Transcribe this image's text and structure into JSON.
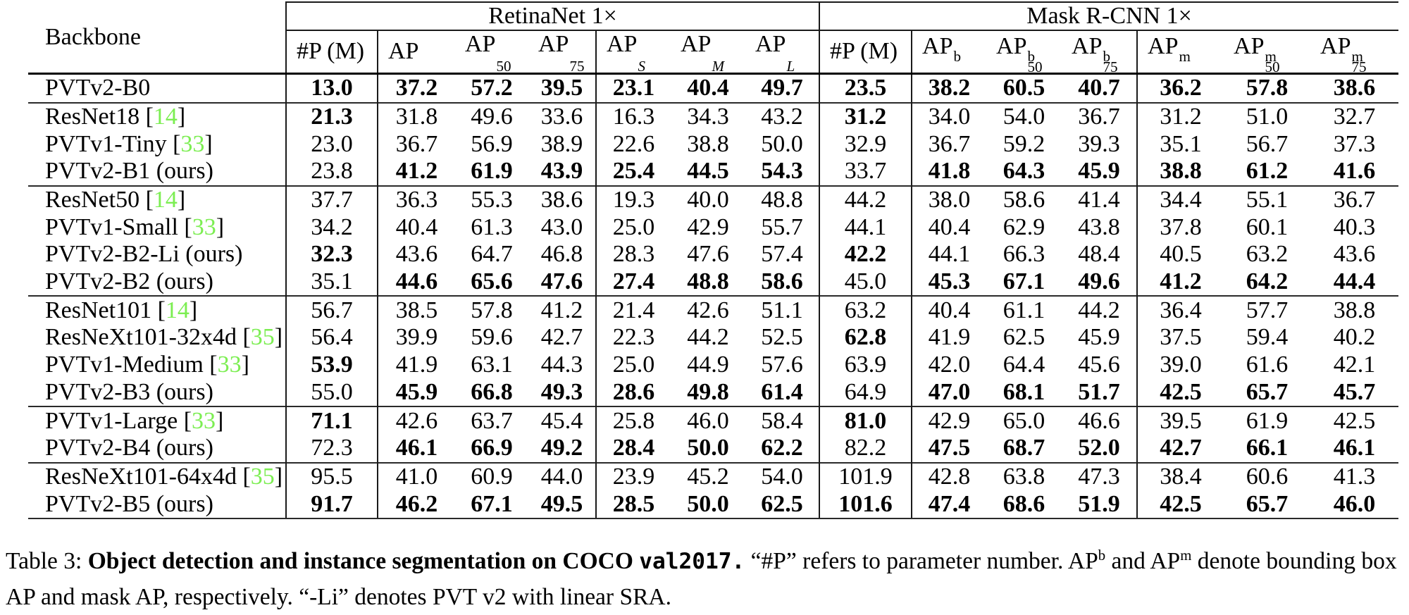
{
  "header": {
    "backbone_label": "Backbone",
    "retinanet_label": "RetinaNet 1×",
    "mask_label": "Mask R-CNN 1×",
    "subcols": [
      {
        "t": "#P (M)"
      },
      {
        "t": "AP"
      },
      {
        "t": "AP",
        "sub": "50"
      },
      {
        "t": "AP",
        "sub": "75"
      },
      {
        "t": "AP",
        "sub": "S",
        "it": 1
      },
      {
        "t": "AP",
        "sub": "M",
        "it": 1
      },
      {
        "t": "AP",
        "sub": "L",
        "it": 1
      },
      {
        "t": "#P (M)"
      },
      {
        "t": "AP",
        "sup": "b"
      },
      {
        "t": "AP",
        "sup": "b",
        "sub": "50"
      },
      {
        "t": "AP",
        "sup": "b",
        "sub": "75"
      },
      {
        "t": "AP",
        "sup": "m"
      },
      {
        "t": "AP",
        "sup": "m",
        "sub": "50"
      },
      {
        "t": "AP",
        "sup": "m",
        "sub": "75"
      }
    ]
  },
  "rows": [
    {
      "name": "PVTv2-B0",
      "cite": null,
      "sep": false,
      "v": [
        "13.0",
        "37.2",
        "57.2",
        "39.5",
        "23.1",
        "40.4",
        "49.7",
        "23.5",
        "38.2",
        "60.5",
        "40.7",
        "36.2",
        "57.8",
        "38.6"
      ],
      "b": [
        1,
        1,
        1,
        1,
        1,
        1,
        1,
        1,
        1,
        1,
        1,
        1,
        1,
        1
      ]
    },
    {
      "name": "ResNet18",
      "cite": "14",
      "sep": true,
      "v": [
        "21.3",
        "31.8",
        "49.6",
        "33.6",
        "16.3",
        "34.3",
        "43.2",
        "31.2",
        "34.0",
        "54.0",
        "36.7",
        "31.2",
        "51.0",
        "32.7"
      ],
      "b": [
        1,
        0,
        0,
        0,
        0,
        0,
        0,
        1,
        0,
        0,
        0,
        0,
        0,
        0
      ]
    },
    {
      "name": "PVTv1-Tiny",
      "cite": "33",
      "sep": false,
      "v": [
        "23.0",
        "36.7",
        "56.9",
        "38.9",
        "22.6",
        "38.8",
        "50.0",
        "32.9",
        "36.7",
        "59.2",
        "39.3",
        "35.1",
        "56.7",
        "37.3"
      ],
      "b": [
        0,
        0,
        0,
        0,
        0,
        0,
        0,
        0,
        0,
        0,
        0,
        0,
        0,
        0
      ]
    },
    {
      "name": "PVTv2-B1 (ours)",
      "cite": null,
      "sep": false,
      "v": [
        "23.8",
        "41.2",
        "61.9",
        "43.9",
        "25.4",
        "44.5",
        "54.3",
        "33.7",
        "41.8",
        "64.3",
        "45.9",
        "38.8",
        "61.2",
        "41.6"
      ],
      "b": [
        0,
        1,
        1,
        1,
        1,
        1,
        1,
        0,
        1,
        1,
        1,
        1,
        1,
        1
      ]
    },
    {
      "name": "ResNet50",
      "cite": "14",
      "sep": true,
      "v": [
        "37.7",
        "36.3",
        "55.3",
        "38.6",
        "19.3",
        "40.0",
        "48.8",
        "44.2",
        "38.0",
        "58.6",
        "41.4",
        "34.4",
        "55.1",
        "36.7"
      ],
      "b": [
        0,
        0,
        0,
        0,
        0,
        0,
        0,
        0,
        0,
        0,
        0,
        0,
        0,
        0
      ]
    },
    {
      "name": "PVTv1-Small",
      "cite": "33",
      "sep": false,
      "v": [
        "34.2",
        "40.4",
        "61.3",
        "43.0",
        "25.0",
        "42.9",
        "55.7",
        "44.1",
        "40.4",
        "62.9",
        "43.8",
        "37.8",
        "60.1",
        "40.3"
      ],
      "b": [
        0,
        0,
        0,
        0,
        0,
        0,
        0,
        0,
        0,
        0,
        0,
        0,
        0,
        0
      ]
    },
    {
      "name": "PVTv2-B2-Li (ours)",
      "cite": null,
      "sep": false,
      "v": [
        "32.3",
        "43.6",
        "64.7",
        "46.8",
        "28.3",
        "47.6",
        "57.4",
        "42.2",
        "44.1",
        "66.3",
        "48.4",
        "40.5",
        "63.2",
        "43.6"
      ],
      "b": [
        1,
        0,
        0,
        0,
        0,
        0,
        0,
        1,
        0,
        0,
        0,
        0,
        0,
        0
      ]
    },
    {
      "name": "PVTv2-B2 (ours)",
      "cite": null,
      "sep": false,
      "v": [
        "35.1",
        "44.6",
        "65.6",
        "47.6",
        "27.4",
        "48.8",
        "58.6",
        "45.0",
        "45.3",
        "67.1",
        "49.6",
        "41.2",
        "64.2",
        "44.4"
      ],
      "b": [
        0,
        1,
        1,
        1,
        1,
        1,
        1,
        0,
        1,
        1,
        1,
        1,
        1,
        1
      ]
    },
    {
      "name": "ResNet101",
      "cite": "14",
      "sep": true,
      "v": [
        "56.7",
        "38.5",
        "57.8",
        "41.2",
        "21.4",
        "42.6",
        "51.1",
        "63.2",
        "40.4",
        "61.1",
        "44.2",
        "36.4",
        "57.7",
        "38.8"
      ],
      "b": [
        0,
        0,
        0,
        0,
        0,
        0,
        0,
        0,
        0,
        0,
        0,
        0,
        0,
        0
      ]
    },
    {
      "name": "ResNeXt101-32x4d",
      "cite": "35",
      "sep": false,
      "v": [
        "56.4",
        "39.9",
        "59.6",
        "42.7",
        "22.3",
        "44.2",
        "52.5",
        "62.8",
        "41.9",
        "62.5",
        "45.9",
        "37.5",
        "59.4",
        "40.2"
      ],
      "b": [
        0,
        0,
        0,
        0,
        0,
        0,
        0,
        1,
        0,
        0,
        0,
        0,
        0,
        0
      ]
    },
    {
      "name": "PVTv1-Medium",
      "cite": "33",
      "sep": false,
      "v": [
        "53.9",
        "41.9",
        "63.1",
        "44.3",
        "25.0",
        "44.9",
        "57.6",
        "63.9",
        "42.0",
        "64.4",
        "45.6",
        "39.0",
        "61.6",
        "42.1"
      ],
      "b": [
        1,
        0,
        0,
        0,
        0,
        0,
        0,
        0,
        0,
        0,
        0,
        0,
        0,
        0
      ]
    },
    {
      "name": "PVTv2-B3 (ours)",
      "cite": null,
      "sep": false,
      "v": [
        "55.0",
        "45.9",
        "66.8",
        "49.3",
        "28.6",
        "49.8",
        "61.4",
        "64.9",
        "47.0",
        "68.1",
        "51.7",
        "42.5",
        "65.7",
        "45.7"
      ],
      "b": [
        0,
        1,
        1,
        1,
        1,
        1,
        1,
        0,
        1,
        1,
        1,
        1,
        1,
        1
      ]
    },
    {
      "name": "PVTv1-Large",
      "cite": "33",
      "sep": true,
      "v": [
        "71.1",
        "42.6",
        "63.7",
        "45.4",
        "25.8",
        "46.0",
        "58.4",
        "81.0",
        "42.9",
        "65.0",
        "46.6",
        "39.5",
        "61.9",
        "42.5"
      ],
      "b": [
        1,
        0,
        0,
        0,
        0,
        0,
        0,
        1,
        0,
        0,
        0,
        0,
        0,
        0
      ]
    },
    {
      "name": "PVTv2-B4 (ours)",
      "cite": null,
      "sep": false,
      "v": [
        "72.3",
        "46.1",
        "66.9",
        "49.2",
        "28.4",
        "50.0",
        "62.2",
        "82.2",
        "47.5",
        "68.7",
        "52.0",
        "42.7",
        "66.1",
        "46.1"
      ],
      "b": [
        0,
        1,
        1,
        1,
        1,
        1,
        1,
        0,
        1,
        1,
        1,
        1,
        1,
        1
      ]
    },
    {
      "name": "ResNeXt101-64x4d",
      "cite": "35",
      "sep": true,
      "v": [
        "95.5",
        "41.0",
        "60.9",
        "44.0",
        "23.9",
        "45.2",
        "54.0",
        "101.9",
        "42.8",
        "63.8",
        "47.3",
        "38.4",
        "60.6",
        "41.3"
      ],
      "b": [
        0,
        0,
        0,
        0,
        0,
        0,
        0,
        0,
        0,
        0,
        0,
        0,
        0,
        0
      ]
    },
    {
      "name": "PVTv2-B5 (ours)",
      "cite": null,
      "sep": false,
      "v": [
        "91.7",
        "46.2",
        "67.1",
        "49.5",
        "28.5",
        "50.0",
        "62.5",
        "101.6",
        "47.4",
        "68.6",
        "51.9",
        "42.5",
        "65.7",
        "46.0"
      ],
      "b": [
        1,
        1,
        1,
        1,
        1,
        1,
        1,
        1,
        1,
        1,
        1,
        1,
        1,
        1
      ]
    }
  ],
  "caption": {
    "parts": [
      {
        "t": "Table 3: "
      },
      {
        "t": "Object detection and instance segmentation on COCO ",
        "bold": 1
      },
      {
        "t": "val2017.",
        "bold": 1,
        "mono": 1
      },
      {
        "t": " “#P” refers to parameter number.  AP"
      },
      {
        "t": "b",
        "sup": 1
      },
      {
        "t": " and AP"
      },
      {
        "t": "m",
        "sup": 1
      },
      {
        "t": " denote bounding box AP and mask AP, respectively. “-Li” denotes PVT v2 with linear SRA."
      }
    ]
  },
  "colors": {
    "citation_green": "#7CEE52",
    "text": "#000000"
  }
}
